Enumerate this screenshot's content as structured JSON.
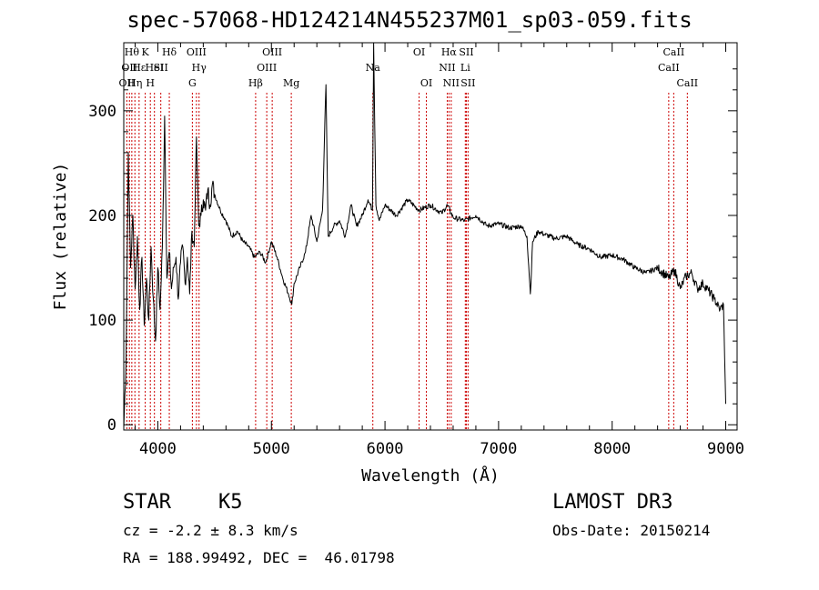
{
  "chart_data": {
    "type": "line",
    "title": "spec-57068-HD124214N455237M01_sp03-059.fits",
    "xlabel": "Wavelength (Å)",
    "ylabel": "Flux (relative)",
    "xlim": [
      3700,
      9100
    ],
    "ylim": [
      -5,
      365
    ],
    "xticks": [
      4000,
      5000,
      6000,
      7000,
      8000,
      9000
    ],
    "yticks": [
      0,
      100,
      200,
      300
    ],
    "grid": false,
    "series": [
      {
        "x": [
          3700,
          3720,
          3740,
          3760,
          3780,
          3800,
          3820,
          3840,
          3860,
          3880,
          3900,
          3920,
          3940,
          3960,
          3980,
          4000,
          4020,
          4040,
          4060,
          4080,
          4100,
          4120,
          4140,
          4160,
          4180,
          4200,
          4220,
          4240,
          4260,
          4280,
          4300,
          4320,
          4340,
          4360,
          4380,
          4400,
          4420,
          4440,
          4460,
          4480,
          4500,
          4550,
          4600,
          4650,
          4700,
          4750,
          4800,
          4850,
          4900,
          4950,
          5000,
          5050,
          5100,
          5150,
          5180,
          5200,
          5250,
          5300,
          5350,
          5400,
          5450,
          5480,
          5500,
          5550,
          5600,
          5650,
          5700,
          5750,
          5800,
          5850,
          5890,
          5900,
          5920,
          5950,
          6000,
          6100,
          6200,
          6300,
          6400,
          6500,
          6550,
          6600,
          6700,
          6800,
          6900,
          7000,
          7100,
          7200,
          7250,
          7280,
          7300,
          7350,
          7400,
          7500,
          7600,
          7700,
          7800,
          7900,
          8000,
          8100,
          8200,
          8300,
          8400,
          8500,
          8550,
          8600,
          8650,
          8700,
          8750,
          8800,
          8850,
          8900,
          8950,
          8980,
          9000
        ],
        "y": [
          -3,
          60,
          260,
          150,
          200,
          130,
          180,
          110,
          160,
          95,
          140,
          100,
          170,
          120,
          80,
          150,
          110,
          170,
          295,
          140,
          165,
          130,
          150,
          160,
          120,
          155,
          170,
          135,
          160,
          125,
          185,
          170,
          275,
          190,
          200,
          215,
          205,
          225,
          210,
          230,
          220,
          205,
          195,
          180,
          185,
          175,
          170,
          160,
          165,
          155,
          175,
          160,
          140,
          125,
          115,
          135,
          150,
          165,
          200,
          175,
          205,
          325,
          180,
          190,
          195,
          180,
          210,
          190,
          200,
          215,
          205,
          365,
          210,
          195,
          210,
          200,
          215,
          205,
          210,
          202,
          210,
          198,
          195,
          200,
          190,
          192,
          188,
          190,
          180,
          125,
          175,
          185,
          182,
          178,
          180,
          172,
          168,
          160,
          162,
          158,
          150,
          145,
          150,
          140,
          148,
          130,
          142,
          145,
          130,
          135,
          128,
          120,
          110,
          115,
          20
        ]
      }
    ],
    "lines": [
      {
        "wl": 3727,
        "labels": [
          "OII"
        ],
        "row": 2
      },
      {
        "wl": 3750,
        "labels": [
          "OII"
        ],
        "row": 1
      },
      {
        "wl": 3771,
        "labels": [
          "Hθ"
        ],
        "row": 0
      },
      {
        "wl": 3798,
        "labels": [
          "Hη"
        ],
        "row": 2
      },
      {
        "wl": 3835,
        "labels": [
          "Hε"
        ],
        "row": 1
      },
      {
        "wl": 3889,
        "labels": [
          "K"
        ],
        "row": 0
      },
      {
        "wl": 3934,
        "labels": [
          "H"
        ],
        "row": 2
      },
      {
        "wl": 3970,
        "labels": [
          "HeI"
        ],
        "row": 1
      },
      {
        "wl": 4026,
        "labels": [
          "SII"
        ],
        "row": 1
      },
      {
        "wl": 4101,
        "labels": [
          "Hδ"
        ],
        "row": 0
      },
      {
        "wl": 4304,
        "labels": [
          "G"
        ],
        "row": 2
      },
      {
        "wl": 4340,
        "labels": [
          "OIII"
        ],
        "row": 0
      },
      {
        "wl": 4363,
        "labels": [
          "Hγ"
        ],
        "row": 1
      },
      {
        "wl": 4861,
        "labels": [
          "Hβ"
        ],
        "row": 2
      },
      {
        "wl": 4959,
        "labels": [
          "OIII"
        ],
        "row": 1
      },
      {
        "wl": 5007,
        "labels": [
          "OIII"
        ],
        "row": 0
      },
      {
        "wl": 5175,
        "labels": [
          "Mg"
        ],
        "row": 2
      },
      {
        "wl": 5893,
        "labels": [
          "Na"
        ],
        "row": 1
      },
      {
        "wl": 6300,
        "labels": [
          "OI"
        ],
        "row": 0
      },
      {
        "wl": 6364,
        "labels": [
          "OI"
        ],
        "row": 2
      },
      {
        "wl": 6548,
        "labels": [
          "NII"
        ],
        "row": 1
      },
      {
        "wl": 6563,
        "labels": [
          "Hα"
        ],
        "row": 0
      },
      {
        "wl": 6583,
        "labels": [
          "NII"
        ],
        "row": 2
      },
      {
        "wl": 6707,
        "labels": [
          "Li"
        ],
        "row": 1
      },
      {
        "wl": 6716,
        "labels": [
          "SII"
        ],
        "row": 0
      },
      {
        "wl": 6731,
        "labels": [
          "SII"
        ],
        "row": 2
      },
      {
        "wl": 8498,
        "labels": [
          "CaII"
        ],
        "row": 1
      },
      {
        "wl": 8542,
        "labels": [
          "CaII"
        ],
        "row": 0
      },
      {
        "wl": 8662,
        "labels": [
          "CaII"
        ],
        "row": 2
      }
    ]
  },
  "info": {
    "object_class": "STAR",
    "subclass": "K5",
    "survey": "LAMOST DR3",
    "cz": "cz = -2.2 ± 8.3 km/s",
    "obs_date": "Obs-Date: 20150214",
    "coords": "RA = 188.99492, DEC =  46.01798"
  },
  "colors": {
    "line_marker": "#cc0000",
    "spectrum": "#000000",
    "axes": "#000000"
  }
}
